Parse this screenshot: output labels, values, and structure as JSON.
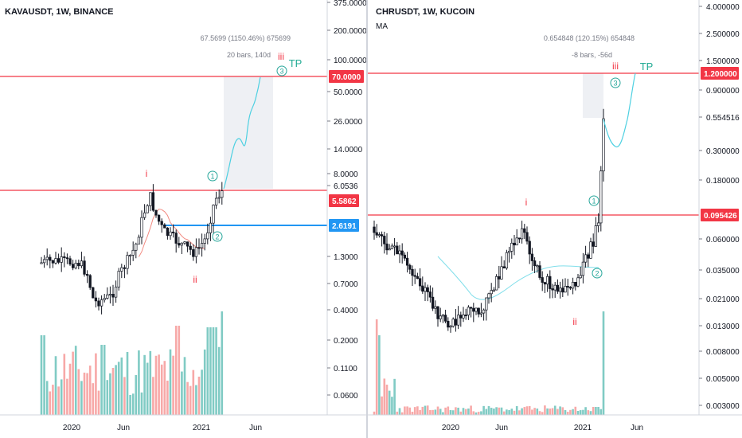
{
  "colors": {
    "bull": "#26a69a",
    "bear": "#ef5350",
    "candle": "#131722",
    "resistance": "#f23645",
    "support": "#2196f3",
    "wave": "#26a69a",
    "ma_left": "#f28b82",
    "ma_right": "#80deea",
    "projection": "#4dd0e1",
    "volume_up": "#80cbc4",
    "volume_down": "#f7a9a8",
    "box": "#e0e3eb",
    "grid_text": "#131722"
  },
  "left": {
    "title": "KAVAUSDT, 1W, BINANCE",
    "measure_line1": "67.5699 (1150.46%) 675699",
    "measure_line2": "20 bars, 140d",
    "y_axis": [
      "375.0000",
      "200.0000",
      "100.0000",
      "50.0000",
      "26.0000",
      "14.0000",
      "8.0000",
      "6.0536",
      "1.3000",
      "0.7000",
      "0.4000",
      "0.2000",
      "0.1100",
      "0.0600"
    ],
    "price_labels": [
      {
        "text": "70.0000",
        "kind": "resistance"
      },
      {
        "text": "5.5862",
        "kind": "resistance"
      },
      {
        "text": "2.6191",
        "kind": "support"
      }
    ],
    "x_axis": [
      "2020",
      "Jun",
      "2021",
      "Jun"
    ],
    "waves": {
      "i": "i",
      "ii": "ii",
      "iii": "iii",
      "w1": "1",
      "w2": "2",
      "w3": "3",
      "tp": "TP"
    }
  },
  "right": {
    "title": "CHRUSDT, 1W, KUCOIN",
    "indicator": "MA",
    "measure_line1": "0.654848 (120.15%) 654848",
    "measure_line2": "-8 bars, -56d",
    "y_axis": [
      "4.000000",
      "2.500000",
      "1.500000",
      "0.900000",
      "0.554516",
      "0.300000",
      "0.180000",
      "0.060000",
      "0.035000",
      "0.021000",
      "0.013000",
      "0.008000",
      "0.005000",
      "0.003000"
    ],
    "price_labels": [
      {
        "text": "1.200000",
        "kind": "resistance"
      },
      {
        "text": "0.095426",
        "kind": "resistance"
      }
    ],
    "x_axis": [
      "2020",
      "Jun",
      "2021",
      "Jun"
    ],
    "waves": {
      "i": "i",
      "ii": "ii",
      "iii": "iii",
      "w1": "1",
      "w2": "2",
      "w3": "3",
      "tp": "TP"
    }
  }
}
